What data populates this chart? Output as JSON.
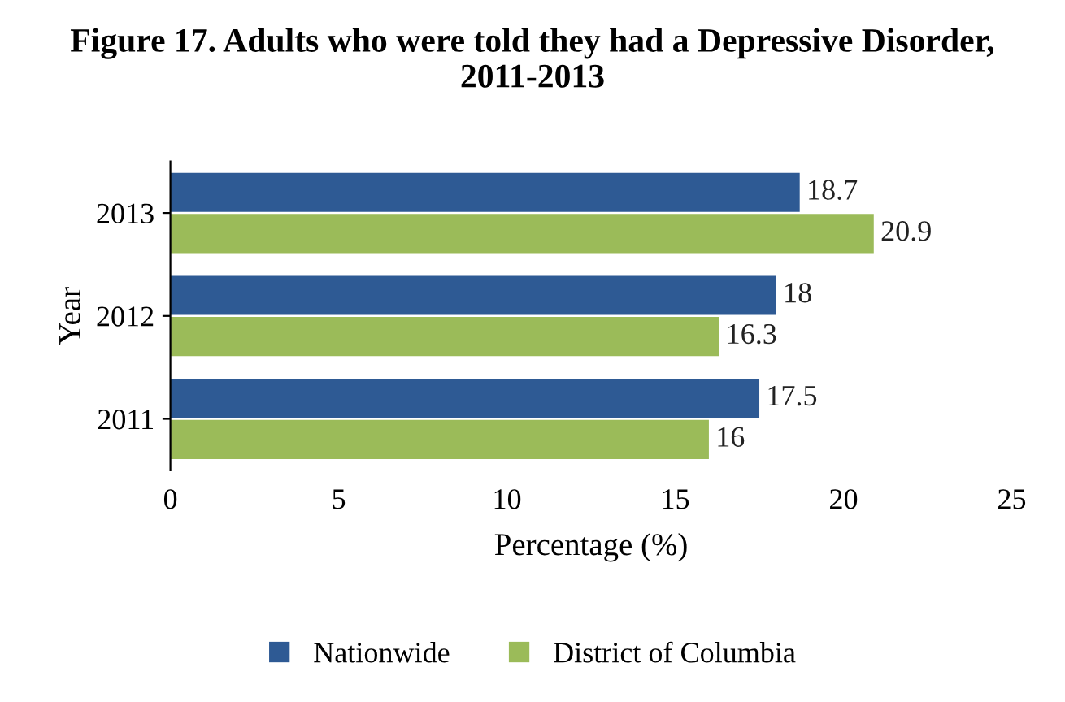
{
  "chart_data": {
    "type": "bar",
    "orientation": "horizontal",
    "title": "Figure 17. Adults who were told they had a Depressive Disorder, 2011-2013",
    "categories": [
      "2013",
      "2012",
      "2011"
    ],
    "series": [
      {
        "name": "Nationwide",
        "color": "#2e5a94",
        "values": [
          18.7,
          18,
          17.5
        ]
      },
      {
        "name": "District of Columbia",
        "color": "#9bbb59",
        "values": [
          20.9,
          16.3,
          16
        ]
      }
    ],
    "xlabel": "Percentage (%)",
    "ylabel": "Year",
    "xlim": [
      0,
      25
    ],
    "xticks": [
      0,
      5,
      10,
      15,
      20,
      25
    ],
    "data_labels": true,
    "grid": false,
    "legend": "bottom"
  }
}
